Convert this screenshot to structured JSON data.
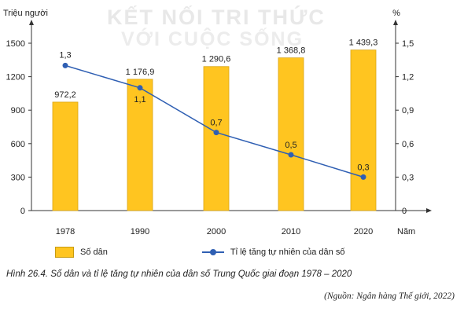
{
  "watermark": {
    "line1": "KẾT NỐI TRI THỨC",
    "line2": "VỚI CUỘC SỐNG"
  },
  "chart_data": {
    "type": "bar",
    "categories": [
      "1978",
      "1990",
      "2000",
      "2010",
      "2020"
    ],
    "xlabel": "Năm",
    "ylabel_left": "Triệu người",
    "ylabel_right": "%",
    "ylim_left": [
      0,
      1500
    ],
    "yticks_left": [
      "0",
      "300",
      "600",
      "900",
      "1200",
      "1500"
    ],
    "ylim_right": [
      0,
      1.5
    ],
    "yticks_right": [
      "0",
      "0,3",
      "0,6",
      "0,9",
      "1,2",
      "1,5"
    ],
    "series": [
      {
        "name": "Số dân",
        "type": "bar",
        "axis": "left",
        "color": "#FFC520",
        "values": [
          972.2,
          1176.9,
          1290.6,
          1368.8,
          1439.3
        ],
        "labels": [
          "972,2",
          "1 176,9",
          "1 290,6",
          "1 368,8",
          "1 439,3"
        ]
      },
      {
        "name": "Tỉ lệ tăng tự nhiên của dân số",
        "type": "line",
        "axis": "right",
        "color": "#2f5fb3",
        "values": [
          1.3,
          1.1,
          0.7,
          0.5,
          0.3
        ],
        "labels": [
          "1,3",
          "1,1",
          "0,7",
          "0,5",
          "0,3"
        ]
      }
    ]
  },
  "caption": "Hình 26.4. Số dân và tỉ lệ tăng tự nhiên của dân số Trung Quốc  giai đoạn 1978 – 2020",
  "source": "(Nguồn: Ngân hàng Thế giới, 2022)"
}
